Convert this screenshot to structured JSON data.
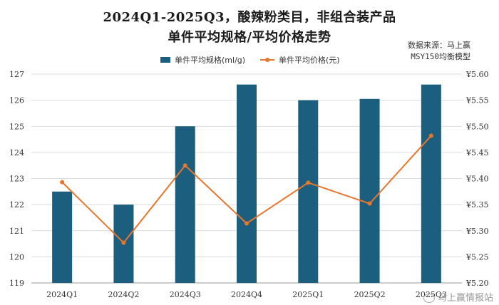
{
  "chart_data": {
    "type": "bar",
    "title": "2024Q1-2025Q3，酸辣粉类目，非组合装产品",
    "subtitle": "单件平均规格/平均价格走势",
    "source_line1": "数据来源：马上赢",
    "source_line2": "MSY150均衡模型",
    "categories": [
      "2024Q1",
      "2024Q2",
      "2024Q3",
      "2024Q4",
      "2025Q1",
      "2025Q2",
      "2025Q3"
    ],
    "series": [
      {
        "name": "单件平均规格(ml/g)",
        "type": "bar",
        "axis": "left",
        "color": "#1b5e7e",
        "values": [
          122.5,
          122.0,
          125.0,
          126.6,
          126.0,
          126.05,
          126.6
        ]
      },
      {
        "name": "单件平均价格(元)",
        "type": "line",
        "axis": "right",
        "color": "#e8762c",
        "values": [
          5.393,
          5.277,
          5.425,
          5.314,
          5.392,
          5.352,
          5.482
        ]
      }
    ],
    "left_axis": {
      "ylim": [
        119,
        127
      ],
      "ticks": [
        "119",
        "120",
        "121",
        "122",
        "123",
        "124",
        "125",
        "126",
        "127"
      ]
    },
    "right_axis": {
      "ylim": [
        5.2,
        5.6
      ],
      "ticks": [
        "¥5.20",
        "¥5.25",
        "¥5.30",
        "¥5.35",
        "¥5.40",
        "¥5.45",
        "¥5.50",
        "¥5.55",
        "¥5.60"
      ]
    },
    "grid": true,
    "legend_position": "top"
  },
  "watermark": "马上赢情报站"
}
